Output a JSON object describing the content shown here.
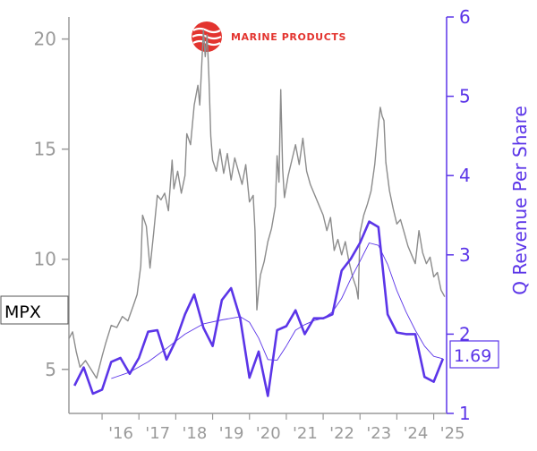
{
  "chart_data": {
    "type": "line",
    "ticker": "MPX",
    "logo_text": "MARINE PRODUCTS",
    "ylabel_right": "Q Revenue Per Share",
    "latest_value_label": "1.69",
    "left_axis": {
      "ticks": [
        5,
        10,
        15,
        20
      ],
      "range": [
        3,
        21
      ]
    },
    "right_axis": {
      "ticks": [
        1,
        2,
        3,
        4,
        5,
        6
      ],
      "range": [
        1,
        6
      ]
    },
    "x_ticks": [
      {
        "label": "'16",
        "x": 2016.0
      },
      {
        "label": "'17",
        "x": 2017.0
      },
      {
        "label": "'18",
        "x": 2018.0
      },
      {
        "label": "'19",
        "x": 2019.0
      },
      {
        "label": "'20",
        "x": 2020.0
      },
      {
        "label": "'21",
        "x": 2021.0
      },
      {
        "label": "'22",
        "x": 2022.0
      },
      {
        "label": "'23",
        "x": 2023.0
      },
      {
        "label": "'24",
        "x": 2024.0
      },
      {
        "label": "'25",
        "x": 2025.0
      }
    ],
    "x_range": [
      2015.1,
      2025.35
    ],
    "price_series": {
      "axis": "left",
      "color": "#8c8c8c",
      "points": [
        [
          2015.1,
          6.4
        ],
        [
          2015.2,
          6.7
        ],
        [
          2015.3,
          5.8
        ],
        [
          2015.4,
          5.1
        ],
        [
          2015.55,
          5.4
        ],
        [
          2015.7,
          5.0
        ],
        [
          2015.85,
          4.6
        ],
        [
          2016.0,
          5.6
        ],
        [
          2016.1,
          6.2
        ],
        [
          2016.25,
          7.0
        ],
        [
          2016.4,
          6.9
        ],
        [
          2016.55,
          7.4
        ],
        [
          2016.7,
          7.2
        ],
        [
          2016.85,
          7.9
        ],
        [
          2016.95,
          8.4
        ],
        [
          2017.05,
          9.7
        ],
        [
          2017.1,
          12.0
        ],
        [
          2017.2,
          11.5
        ],
        [
          2017.3,
          9.6
        ],
        [
          2017.4,
          11.2
        ],
        [
          2017.5,
          12.9
        ],
        [
          2017.6,
          12.7
        ],
        [
          2017.7,
          13.0
        ],
        [
          2017.8,
          12.2
        ],
        [
          2017.9,
          14.5
        ],
        [
          2017.95,
          13.2
        ],
        [
          2018.05,
          14.0
        ],
        [
          2018.15,
          13.0
        ],
        [
          2018.25,
          13.8
        ],
        [
          2018.3,
          15.7
        ],
        [
          2018.4,
          15.2
        ],
        [
          2018.5,
          17.0
        ],
        [
          2018.6,
          17.9
        ],
        [
          2018.65,
          17.0
        ],
        [
          2018.75,
          20.4
        ],
        [
          2018.8,
          19.2
        ],
        [
          2018.85,
          20.2
        ],
        [
          2018.9,
          18.3
        ],
        [
          2018.95,
          15.6
        ],
        [
          2019.0,
          14.5
        ],
        [
          2019.1,
          14.0
        ],
        [
          2019.2,
          15.0
        ],
        [
          2019.3,
          13.9
        ],
        [
          2019.4,
          14.8
        ],
        [
          2019.5,
          13.6
        ],
        [
          2019.6,
          14.6
        ],
        [
          2019.7,
          14.0
        ],
        [
          2019.8,
          13.4
        ],
        [
          2019.9,
          14.3
        ],
        [
          2020.0,
          12.6
        ],
        [
          2020.1,
          12.9
        ],
        [
          2020.15,
          11.3
        ],
        [
          2020.2,
          7.7
        ],
        [
          2020.25,
          8.6
        ],
        [
          2020.3,
          9.3
        ],
        [
          2020.4,
          9.9
        ],
        [
          2020.5,
          10.8
        ],
        [
          2020.6,
          11.4
        ],
        [
          2020.7,
          12.4
        ],
        [
          2020.75,
          14.7
        ],
        [
          2020.8,
          13.5
        ],
        [
          2020.85,
          17.7
        ],
        [
          2020.9,
          14.1
        ],
        [
          2020.95,
          12.8
        ],
        [
          2021.05,
          13.8
        ],
        [
          2021.15,
          14.5
        ],
        [
          2021.25,
          15.2
        ],
        [
          2021.35,
          14.3
        ],
        [
          2021.45,
          15.5
        ],
        [
          2021.55,
          14.0
        ],
        [
          2021.65,
          13.4
        ],
        [
          2021.75,
          13.0
        ],
        [
          2021.85,
          12.6
        ],
        [
          2022.0,
          12.0
        ],
        [
          2022.1,
          11.3
        ],
        [
          2022.2,
          11.9
        ],
        [
          2022.3,
          10.4
        ],
        [
          2022.4,
          10.9
        ],
        [
          2022.5,
          10.2
        ],
        [
          2022.6,
          10.8
        ],
        [
          2022.7,
          9.9
        ],
        [
          2022.8,
          9.2
        ],
        [
          2022.9,
          8.7
        ],
        [
          2022.95,
          8.2
        ],
        [
          2023.0,
          11.2
        ],
        [
          2023.1,
          12.0
        ],
        [
          2023.2,
          12.5
        ],
        [
          2023.3,
          13.1
        ],
        [
          2023.4,
          14.3
        ],
        [
          2023.5,
          16.1
        ],
        [
          2023.55,
          16.9
        ],
        [
          2023.6,
          16.5
        ],
        [
          2023.65,
          16.3
        ],
        [
          2023.7,
          14.4
        ],
        [
          2023.8,
          13.1
        ],
        [
          2023.9,
          12.3
        ],
        [
          2024.0,
          11.6
        ],
        [
          2024.1,
          11.8
        ],
        [
          2024.2,
          11.2
        ],
        [
          2024.3,
          10.6
        ],
        [
          2024.4,
          10.2
        ],
        [
          2024.5,
          9.8
        ],
        [
          2024.6,
          11.3
        ],
        [
          2024.7,
          10.3
        ],
        [
          2024.8,
          9.8
        ],
        [
          2024.9,
          10.1
        ],
        [
          2025.0,
          9.2
        ],
        [
          2025.1,
          9.4
        ],
        [
          2025.2,
          8.6
        ],
        [
          2025.3,
          8.3
        ]
      ]
    },
    "revenue_series": {
      "axis": "right",
      "color": "#5b35e8",
      "points": [
        [
          2015.25,
          1.35
        ],
        [
          2015.5,
          1.58
        ],
        [
          2015.75,
          1.25
        ],
        [
          2016.0,
          1.3
        ],
        [
          2016.25,
          1.65
        ],
        [
          2016.5,
          1.7
        ],
        [
          2016.75,
          1.5
        ],
        [
          2017.0,
          1.7
        ],
        [
          2017.25,
          2.03
        ],
        [
          2017.5,
          2.05
        ],
        [
          2017.75,
          1.68
        ],
        [
          2018.0,
          1.92
        ],
        [
          2018.25,
          2.25
        ],
        [
          2018.5,
          2.5
        ],
        [
          2018.75,
          2.08
        ],
        [
          2019.0,
          1.85
        ],
        [
          2019.25,
          2.43
        ],
        [
          2019.5,
          2.58
        ],
        [
          2019.75,
          2.2
        ],
        [
          2020.0,
          1.45
        ],
        [
          2020.25,
          1.78
        ],
        [
          2020.5,
          1.22
        ],
        [
          2020.75,
          2.05
        ],
        [
          2021.0,
          2.1
        ],
        [
          2021.25,
          2.3
        ],
        [
          2021.5,
          2.0
        ],
        [
          2021.75,
          2.2
        ],
        [
          2022.0,
          2.2
        ],
        [
          2022.25,
          2.25
        ],
        [
          2022.5,
          2.8
        ],
        [
          2022.75,
          2.95
        ],
        [
          2023.0,
          3.15
        ],
        [
          2023.25,
          3.42
        ],
        [
          2023.5,
          3.35
        ],
        [
          2023.75,
          2.25
        ],
        [
          2024.0,
          2.02
        ],
        [
          2024.25,
          2.0
        ],
        [
          2024.5,
          2.0
        ],
        [
          2024.75,
          1.46
        ],
        [
          2025.0,
          1.4
        ],
        [
          2025.25,
          1.69
        ]
      ]
    },
    "revenue_trend": {
      "axis": "right",
      "color": "#5b35e8",
      "points": [
        [
          2016.25,
          1.44
        ],
        [
          2016.75,
          1.52
        ],
        [
          2017.25,
          1.65
        ],
        [
          2017.75,
          1.82
        ],
        [
          2018.25,
          2.0
        ],
        [
          2018.75,
          2.13
        ],
        [
          2019.25,
          2.18
        ],
        [
          2019.75,
          2.22
        ],
        [
          2020.0,
          2.15
        ],
        [
          2020.25,
          1.95
        ],
        [
          2020.5,
          1.68
        ],
        [
          2020.75,
          1.67
        ],
        [
          2021.0,
          1.85
        ],
        [
          2021.25,
          2.05
        ],
        [
          2021.5,
          2.12
        ],
        [
          2021.75,
          2.17
        ],
        [
          2022.0,
          2.2
        ],
        [
          2022.25,
          2.28
        ],
        [
          2022.5,
          2.45
        ],
        [
          2022.75,
          2.7
        ],
        [
          2023.0,
          2.92
        ],
        [
          2023.25,
          3.15
        ],
        [
          2023.5,
          3.12
        ],
        [
          2023.75,
          2.88
        ],
        [
          2024.0,
          2.55
        ],
        [
          2024.25,
          2.28
        ],
        [
          2024.5,
          2.05
        ],
        [
          2024.75,
          1.85
        ],
        [
          2025.0,
          1.72
        ],
        [
          2025.25,
          1.69
        ]
      ]
    }
  }
}
